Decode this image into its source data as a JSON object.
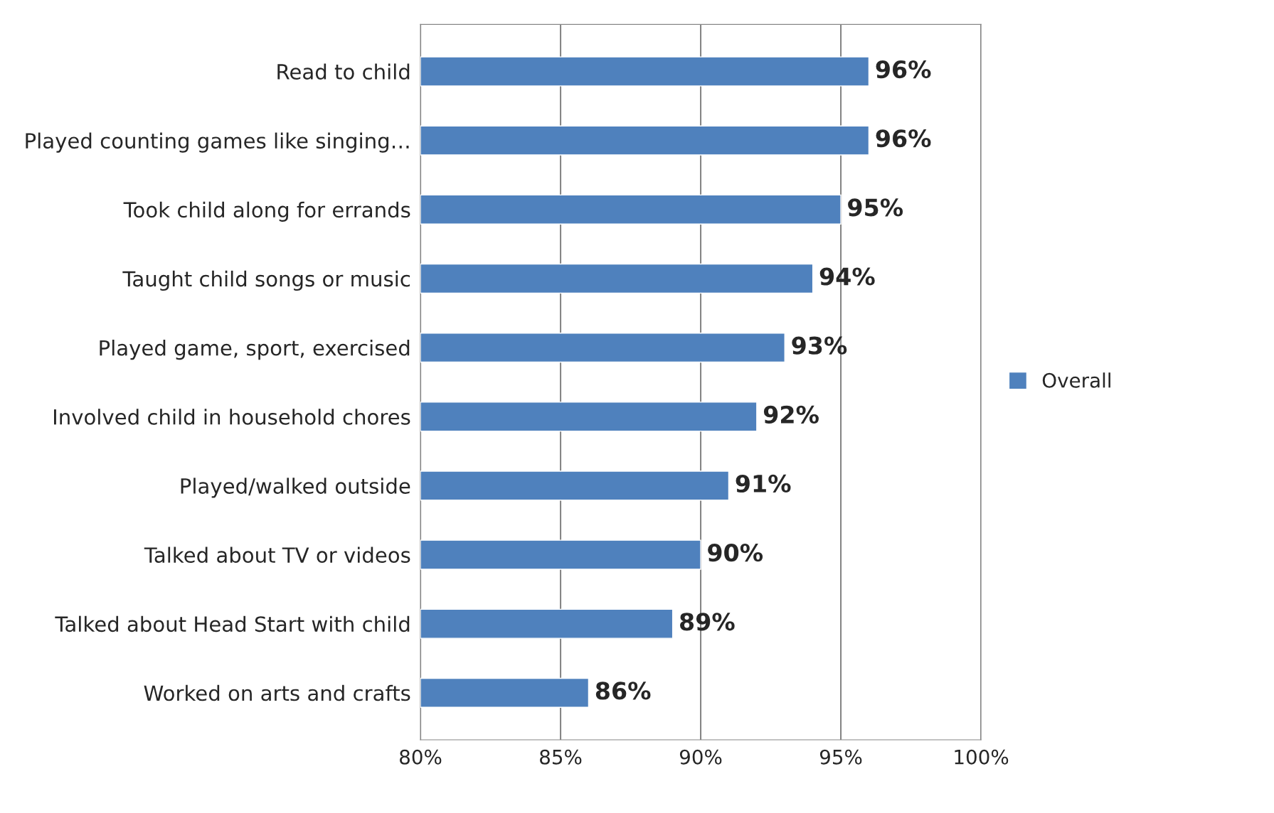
{
  "chart_data": {
    "type": "bar",
    "orientation": "horizontal",
    "categories": [
      "Read to child",
      "Played counting games like singing…",
      "Took child along for errands",
      "Taught child songs or music",
      "Played game, sport, exercised",
      "Involved child in household chores",
      "Played/walked outside",
      "Talked about TV or videos",
      "Talked about Head Start with child",
      "Worked on arts and crafts"
    ],
    "series": [
      {
        "name": "Overall",
        "color": "#4f81bd",
        "values": [
          96,
          96,
          95,
          94,
          93,
          92,
          91,
          90,
          89,
          86
        ]
      }
    ],
    "value_labels": [
      "96%",
      "96%",
      "95%",
      "94%",
      "93%",
      "92%",
      "91%",
      "90%",
      "89%",
      "86%"
    ],
    "xlim": [
      80,
      100
    ],
    "xticks": [
      {
        "value": 80,
        "label": "80%"
      },
      {
        "value": 85,
        "label": "85%"
      },
      {
        "value": 90,
        "label": "90%"
      },
      {
        "value": 95,
        "label": "95%"
      },
      {
        "value": 100,
        "label": "100%"
      }
    ],
    "grid": "x",
    "legend": "right"
  }
}
